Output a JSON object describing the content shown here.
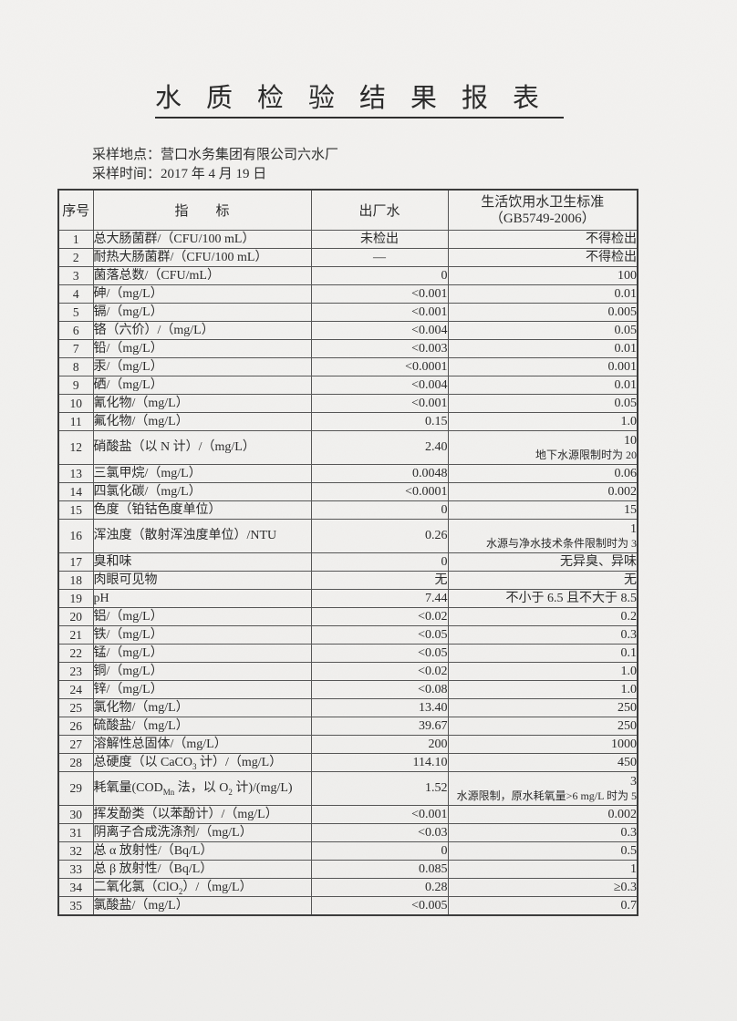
{
  "document": {
    "title": "水质检验结果报表",
    "meta": {
      "location": "采样地点：营口水务集团有限公司六水厂",
      "time": "采样时间：2017 年 4 月 19 日"
    },
    "table": {
      "col_no": "序号",
      "col_indicator": "指　　标",
      "col_outflow": "出厂水",
      "col_standard_line1": "生活饮用水卫生标准",
      "col_standard_line2": "（GB5749-2006）",
      "rows": [
        {
          "no": "1",
          "indicator": "总大肠菌群/（CFU/100 mL）",
          "value": "未检出",
          "value_align": "center",
          "standard": "不得检出"
        },
        {
          "no": "2",
          "indicator": "耐热大肠菌群/（CFU/100 mL）",
          "value": "—",
          "value_align": "center",
          "standard": "不得检出"
        },
        {
          "no": "3",
          "indicator": "菌落总数/（CFU/mL）",
          "value": "0",
          "standard": "100"
        },
        {
          "no": "4",
          "indicator": "砷/（mg/L）",
          "value": "<0.001",
          "standard": "0.01"
        },
        {
          "no": "5",
          "indicator": "镉/（mg/L）",
          "value": "<0.001",
          "standard": "0.005"
        },
        {
          "no": "6",
          "indicator": "铬（六价）/（mg/L）",
          "value": "<0.004",
          "standard": "0.05"
        },
        {
          "no": "7",
          "indicator": "铅/（mg/L）",
          "value": "<0.003",
          "standard": "0.01"
        },
        {
          "no": "8",
          "indicator": "汞/（mg/L）",
          "value": "<0.0001",
          "standard": "0.001"
        },
        {
          "no": "9",
          "indicator": "硒/（mg/L）",
          "value": "<0.004",
          "standard": "0.01"
        },
        {
          "no": "10",
          "indicator": "氰化物/（mg/L）",
          "value": "<0.001",
          "standard": "0.05"
        },
        {
          "no": "11",
          "indicator": "氟化物/（mg/L）",
          "value": "0.15",
          "standard": "1.0"
        },
        {
          "no": "12",
          "indicator": "硝酸盐（以 N 计）/（mg/L）",
          "value": "2.40",
          "standard": [
            "10",
            "地下水源限制时为 20"
          ]
        },
        {
          "no": "13",
          "indicator": "三氯甲烷/（mg/L）",
          "value": "0.0048",
          "standard": "0.06"
        },
        {
          "no": "14",
          "indicator": "四氯化碳/（mg/L）",
          "value": "<0.0001",
          "standard": "0.002"
        },
        {
          "no": "15",
          "indicator": "色度（铂钴色度单位）",
          "value": "0",
          "standard": "15"
        },
        {
          "no": "16",
          "indicator": "浑浊度（散射浑浊度单位）/NTU",
          "value": "0.26",
          "standard": [
            "1",
            "水源与净水技术条件限制时为 3"
          ]
        },
        {
          "no": "17",
          "indicator": "臭和味",
          "value": "0",
          "standard": "无异臭、异味"
        },
        {
          "no": "18",
          "indicator": "肉眼可见物",
          "value": "无",
          "standard": "无"
        },
        {
          "no": "19",
          "indicator": "pH",
          "value": "7.44",
          "standard": "不小于 6.5 且不大于 8.5"
        },
        {
          "no": "20",
          "indicator": "铝/（mg/L）",
          "value": "<0.02",
          "standard": "0.2"
        },
        {
          "no": "21",
          "indicator": "铁/（mg/L）",
          "value": "<0.05",
          "standard": "0.3"
        },
        {
          "no": "22",
          "indicator": "锰/（mg/L）",
          "value": "<0.05",
          "standard": "0.1"
        },
        {
          "no": "23",
          "indicator": "铜/（mg/L）",
          "value": "<0.02",
          "standard": "1.0"
        },
        {
          "no": "24",
          "indicator": "锌/（mg/L）",
          "value": "<0.08",
          "standard": "1.0"
        },
        {
          "no": "25",
          "indicator": "氯化物/（mg/L）",
          "value": "13.40",
          "standard": "250"
        },
        {
          "no": "26",
          "indicator": "硫酸盐/（mg/L）",
          "value": "39.67",
          "standard": "250"
        },
        {
          "no": "27",
          "indicator": "溶解性总固体/（mg/L）",
          "value": "200",
          "standard": "1000"
        },
        {
          "no": "28",
          "indicator": [
            {
              "t": "总硬度（以 CaCO"
            },
            {
              "t": "3",
              "sub": true
            },
            {
              "t": " 计）/（mg/L）"
            }
          ],
          "value": "114.10",
          "standard": "450"
        },
        {
          "no": "29",
          "indicator": [
            {
              "t": "耗氧量(COD"
            },
            {
              "t": "Mn",
              "sub": true
            },
            {
              "t": " 法，以 O"
            },
            {
              "t": "2",
              "sub": true
            },
            {
              "t": " 计)/(mg/L)"
            }
          ],
          "value": "1.52",
          "standard": [
            "3",
            "水源限制，原水耗氧量>6 mg/L 时为 5"
          ]
        },
        {
          "no": "30",
          "indicator": "挥发酚类（以苯酚计）/（mg/L）",
          "value": "<0.001",
          "standard": "0.002"
        },
        {
          "no": "31",
          "indicator": "阴离子合成洗涤剂/（mg/L）",
          "value": "<0.03",
          "standard": "0.3"
        },
        {
          "no": "32",
          "indicator": "总 α 放射性/（Bq/L）",
          "value": "0",
          "standard": "0.5"
        },
        {
          "no": "33",
          "indicator": "总 β 放射性/（Bq/L）",
          "value": "0.085",
          "standard": "1"
        },
        {
          "no": "34",
          "indicator": [
            {
              "t": "二氧化氯（ClO"
            },
            {
              "t": "2",
              "sub": true
            },
            {
              "t": "）/（mg/L）"
            }
          ],
          "value": "0.28",
          "standard": "≥0.3"
        },
        {
          "no": "35",
          "indicator": "氯酸盐/（mg/L）",
          "value": "<0.005",
          "standard": "0.7"
        }
      ]
    }
  }
}
